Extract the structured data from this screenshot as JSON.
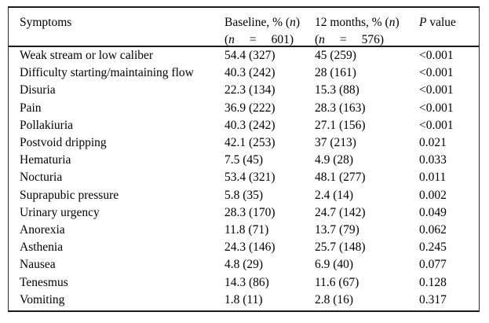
{
  "page": {
    "background_color": "#ffffff",
    "border_color": "#1a1a1a",
    "text_color": "#000000"
  },
  "table": {
    "header": {
      "symptoms_label": "Symptoms",
      "baseline": {
        "line1_pre": "Baseline, % (",
        "line1_it": "n",
        "line1_post": ")",
        "line2_open": "(",
        "line2_it": "n",
        "line2_eq": "=",
        "line2_num": "601)"
      },
      "months12": {
        "line1_pre": "12 months, % (",
        "line1_it": "n",
        "line1_post": ")",
        "line2_open": "(",
        "line2_it": "n",
        "line2_eq": "=",
        "line2_num": "576)"
      },
      "pvalue": {
        "it": "P",
        "rest": " value"
      }
    },
    "rows": [
      {
        "symptom": "Weak stream or low caliber",
        "baseline": "54.4 (327)",
        "months12": "45 (259)",
        "p_value": "<0.001"
      },
      {
        "symptom": "Difficulty starting/maintaining flow",
        "baseline": "40.3 (242)",
        "months12": "28 (161)",
        "p_value": "<0.001"
      },
      {
        "symptom": "Disuria",
        "baseline": "22.3 (134)",
        "months12": "15.3 (88)",
        "p_value": "<0.001"
      },
      {
        "symptom": "Pain",
        "baseline": "36.9 (222)",
        "months12": "28.3 (163)",
        "p_value": "<0.001"
      },
      {
        "symptom": "Pollakiuria",
        "baseline": "40.3 (242)",
        "months12": "27.1 (156)",
        "p_value": "<0.001"
      },
      {
        "symptom": "Postvoid dripping",
        "baseline": "42.1 (253)",
        "months12": "37 (213)",
        "p_value": "0.021"
      },
      {
        "symptom": "Hematuria",
        "baseline": "7.5 (45)",
        "months12": "4.9 (28)",
        "p_value": "0.033"
      },
      {
        "symptom": "Nocturia",
        "baseline": "53.4 (321)",
        "months12": "48.1 (277)",
        "p_value": "0.011"
      },
      {
        "symptom": "Suprapubic pressure",
        "baseline": "5.8 (35)",
        "months12": "2.4 (14)",
        "p_value": "0.002"
      },
      {
        "symptom": "Urinary urgency",
        "baseline": "28.3 (170)",
        "months12": "24.7 (142)",
        "p_value": "0.049"
      },
      {
        "symptom": "Anorexia",
        "baseline": "11.8 (71)",
        "months12": "13.7 (79)",
        "p_value": "0.062"
      },
      {
        "symptom": "Asthenia",
        "baseline": "24.3 (146)",
        "months12": "25.7 (148)",
        "p_value": "0.245"
      },
      {
        "symptom": "Nausea",
        "baseline": "4.8 (29)",
        "months12": "6.9 (40)",
        "p_value": "0.077"
      },
      {
        "symptom": "Tenesmus",
        "baseline": "14.3 (86)",
        "months12": "11.6 (67)",
        "p_value": "0.128"
      },
      {
        "symptom": "Vomiting",
        "baseline": "1.8 (11)",
        "months12": "2.8 (16)",
        "p_value": "0.317"
      }
    ]
  }
}
